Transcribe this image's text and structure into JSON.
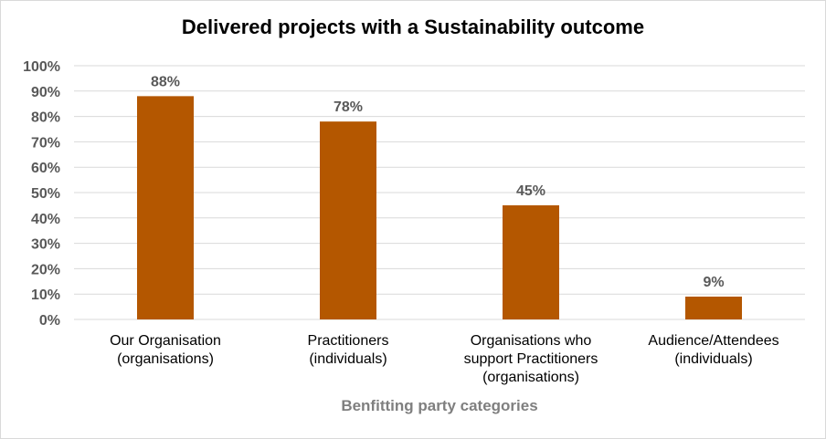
{
  "chart_data": {
    "type": "bar",
    "title": "Delivered projects with a Sustainability outcome",
    "xlabel": "Benfitting party categories",
    "ylabel": "",
    "categories": [
      [
        "Our Organisation",
        "(organisations)"
      ],
      [
        "Practitioners",
        "(individuals)"
      ],
      [
        "Organisations who",
        "support Practitioners",
        "(organisations)"
      ],
      [
        "Audience/Attendees",
        "(individuals)"
      ]
    ],
    "values": [
      88,
      78,
      45,
      9
    ],
    "data_labels": [
      "88%",
      "78%",
      "45%",
      "9%"
    ],
    "ylim": [
      0,
      100
    ],
    "yticks": [
      "0%",
      "10%",
      "20%",
      "30%",
      "40%",
      "50%",
      "60%",
      "70%",
      "80%",
      "90%",
      "100%"
    ],
    "grid": true,
    "bar_color": "#B45700",
    "grid_color": "#d9d9d9"
  }
}
